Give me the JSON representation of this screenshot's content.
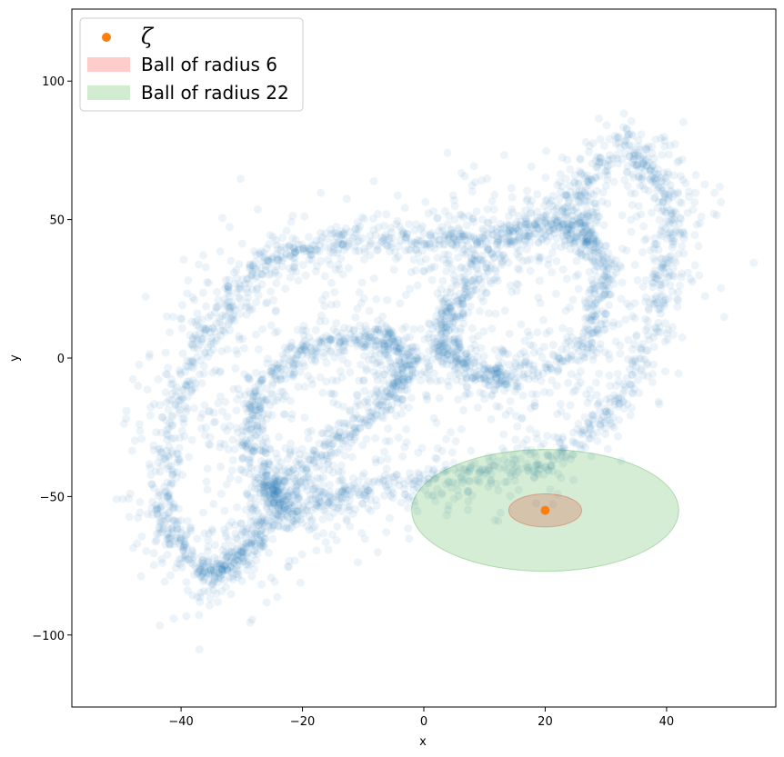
{
  "chart_data": {
    "type": "scatter",
    "xlabel": "x",
    "ylabel": "y",
    "xlim": [
      -58,
      58
    ],
    "ylim": [
      -126,
      126
    ],
    "xticks": [
      -40,
      -20,
      0,
      20,
      40
    ],
    "yticks": [
      -100,
      -50,
      0,
      50,
      100
    ],
    "xtick_labels": [
      "−40",
      "−20",
      "0",
      "20",
      "40"
    ],
    "ytick_labels": [
      "−100",
      "−50",
      "0",
      "50",
      "100"
    ],
    "grid": false,
    "legend_position": "top-left",
    "series": [
      {
        "name": "",
        "kind": "scatter-cloud",
        "color": "#1f77b4",
        "alpha": 0.08,
        "description_points": {
          "outer_loop": [
            [
              -35,
              -80
            ],
            [
              -43,
              -60
            ],
            [
              -42,
              -25
            ],
            [
              -36,
              10
            ],
            [
              -26,
              35
            ],
            [
              -12,
              43
            ],
            [
              5,
              43
            ],
            [
              20,
              48
            ],
            [
              33,
              78
            ],
            [
              41,
              60
            ],
            [
              40,
              25
            ],
            [
              33,
              -15
            ],
            [
              20,
              -38
            ],
            [
              5,
              -43
            ],
            [
              -12,
              -48
            ],
            [
              -23,
              -55
            ],
            [
              -30,
              -70
            ]
          ],
          "left_lobe": [
            [
              -25,
              -50
            ],
            [
              -29,
              -30
            ],
            [
              -27,
              -10
            ],
            [
              -18,
              5
            ],
            [
              -8,
              8
            ],
            [
              -2,
              0
            ],
            [
              -6,
              -15
            ],
            [
              -14,
              -30
            ],
            [
              -24,
              -48
            ]
          ],
          "right_lobe": [
            [
              15,
              -8
            ],
            [
              27,
              5
            ],
            [
              30,
              30
            ],
            [
              27,
              45
            ],
            [
              22,
              50
            ],
            [
              12,
              40
            ],
            [
              5,
              20
            ],
            [
              2,
              5
            ],
            [
              8,
              -5
            ]
          ]
        }
      },
      {
        "name": "ζ",
        "kind": "point",
        "color": "#ff7f0e",
        "points": [
          [
            20,
            -55
          ]
        ]
      }
    ],
    "regions": [
      {
        "name": "Ball of radius 6",
        "center": [
          20,
          -55
        ],
        "radius": 6,
        "color": "#ff0000",
        "alpha": 0.2
      },
      {
        "name": "Ball of radius 22",
        "center": [
          20,
          -55
        ],
        "radius": 22,
        "color": "#2ca02c",
        "alpha": 0.2
      }
    ],
    "legend": [
      {
        "label": "ζ",
        "marker": "dot",
        "color": "#ff7f0e"
      },
      {
        "label": "Ball of radius 6",
        "marker": "patch",
        "color": "#ff9999"
      },
      {
        "label": "Ball of radius 22",
        "marker": "patch",
        "color": "#a6d9a6"
      }
    ]
  }
}
